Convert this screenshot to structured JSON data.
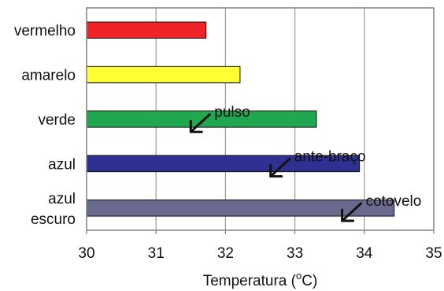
{
  "chart_data": {
    "type": "bar",
    "orientation": "horizontal",
    "categories": [
      "vermelho",
      "amarelo",
      "verde",
      "azul",
      "azul escuro"
    ],
    "category_lines": [
      [
        "vermelho"
      ],
      [
        "amarelo"
      ],
      [
        "verde"
      ],
      [
        "azul"
      ],
      [
        "azul",
        "escuro"
      ]
    ],
    "values": [
      31.72,
      32.21,
      33.31,
      33.93,
      34.43
    ],
    "colors": [
      "#ee2227",
      "#ffff33",
      "#1fa84f",
      "#2e3192",
      "#6a6a8e"
    ],
    "xlim": [
      30,
      35
    ],
    "xticks": [
      30,
      31,
      32,
      33,
      34,
      35
    ],
    "grid": true,
    "xlabel_main": "Temperatura (",
    "xlabel_sup": "o",
    "xlabel_end": "C)",
    "ylabel": "",
    "title": "",
    "annotations": [
      {
        "label": "pulso",
        "x": 31.5,
        "between": [
          2,
          3
        ]
      },
      {
        "label": "ante-braço",
        "x": 32.65,
        "between": [
          3,
          4
        ]
      },
      {
        "label": "cotovelo",
        "x": 33.68,
        "between": [
          4,
          5
        ]
      }
    ]
  }
}
